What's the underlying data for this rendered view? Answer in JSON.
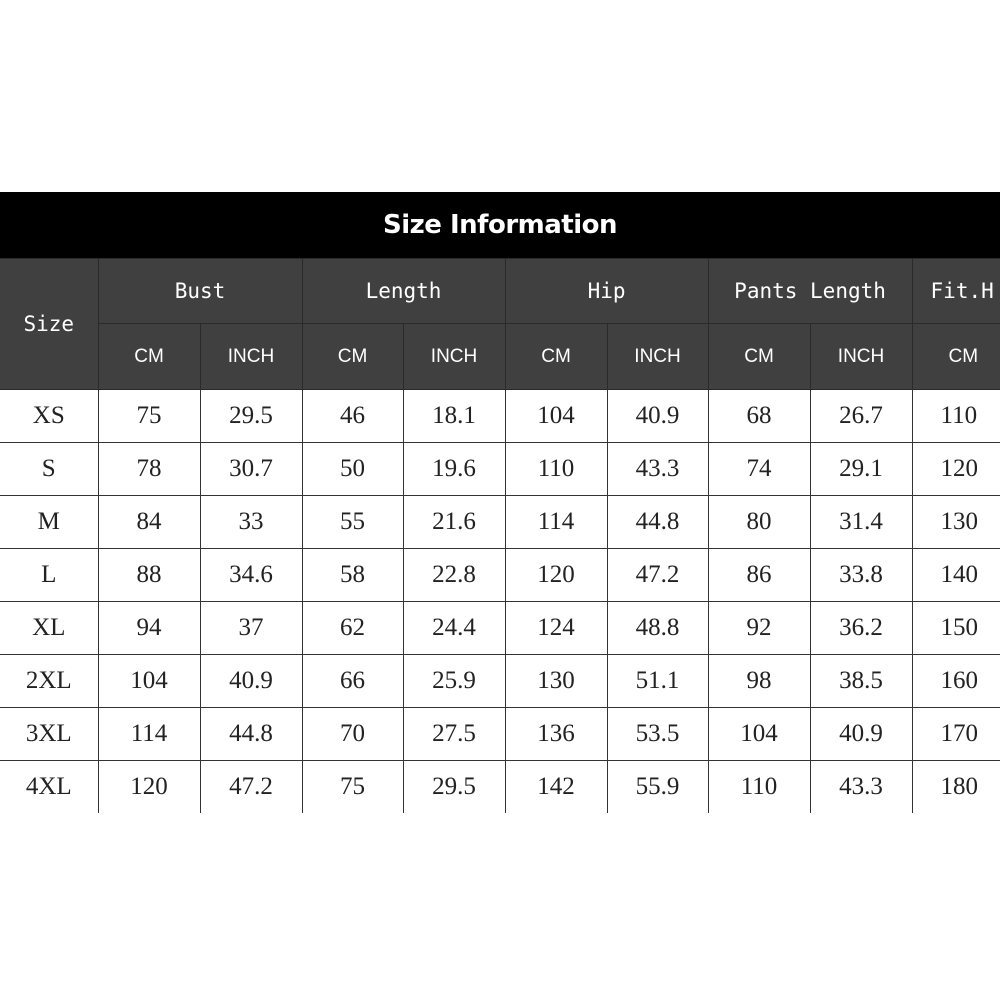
{
  "title": "Size Information",
  "size_header": "Size",
  "groups": [
    {
      "label": "Bust",
      "units": [
        "CM",
        "INCH"
      ]
    },
    {
      "label": "Length",
      "units": [
        "CM",
        "INCH"
      ]
    },
    {
      "label": "Hip",
      "units": [
        "CM",
        "INCH"
      ]
    },
    {
      "label": "Pants Length",
      "units": [
        "CM",
        "INCH"
      ]
    },
    {
      "label": "Fit.H",
      "units": [
        "CM"
      ]
    }
  ],
  "rows": [
    [
      "XS",
      "75",
      "29.5",
      "46",
      "18.1",
      "104",
      "40.9",
      "68",
      "26.7",
      "110"
    ],
    [
      "S",
      "78",
      "30.7",
      "50",
      "19.6",
      "110",
      "43.3",
      "74",
      "29.1",
      "120"
    ],
    [
      "M",
      "84",
      "33",
      "55",
      "21.6",
      "114",
      "44.8",
      "80",
      "31.4",
      "130"
    ],
    [
      "L",
      "88",
      "34.6",
      "58",
      "22.8",
      "120",
      "47.2",
      "86",
      "33.8",
      "140"
    ],
    [
      "XL",
      "94",
      "37",
      "62",
      "24.4",
      "124",
      "48.8",
      "92",
      "36.2",
      "150"
    ],
    [
      "2XL",
      "104",
      "40.9",
      "66",
      "25.9",
      "130",
      "51.1",
      "98",
      "38.5",
      "160"
    ],
    [
      "3XL",
      "114",
      "44.8",
      "70",
      "27.5",
      "136",
      "53.5",
      "104",
      "40.9",
      "170"
    ],
    [
      "4XL",
      "120",
      "47.2",
      "75",
      "29.5",
      "142",
      "55.9",
      "110",
      "43.3",
      "180"
    ]
  ],
  "colors": {
    "title_bg": "#000000",
    "header_bg": "#404040",
    "body_bg": "#ffffff"
  }
}
